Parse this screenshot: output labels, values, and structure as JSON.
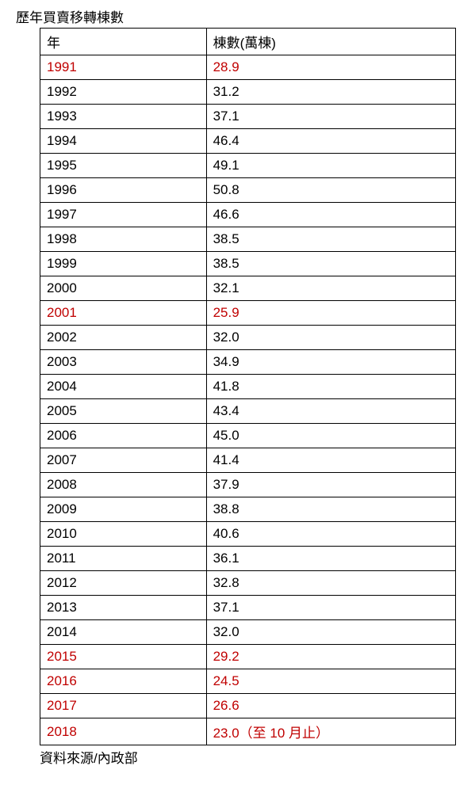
{
  "document": {
    "title": "歷年買賣移轉棟數",
    "source": "資料來源/內政部",
    "table": {
      "columns": [
        "年",
        "棟數(萬棟)"
      ],
      "column_widths": [
        "40%",
        "60%"
      ],
      "rows": [
        {
          "year": "1991",
          "value": "28.9",
          "highlight": true
        },
        {
          "year": "1992",
          "value": "31.2",
          "highlight": false
        },
        {
          "year": "1993",
          "value": "37.1",
          "highlight": false
        },
        {
          "year": "1994",
          "value": "46.4",
          "highlight": false
        },
        {
          "year": "1995",
          "value": "49.1",
          "highlight": false
        },
        {
          "year": "1996",
          "value": "50.8",
          "highlight": false
        },
        {
          "year": "1997",
          "value": "46.6",
          "highlight": false
        },
        {
          "year": "1998",
          "value": "38.5",
          "highlight": false
        },
        {
          "year": "1999",
          "value": "38.5",
          "highlight": false
        },
        {
          "year": "2000",
          "value": "32.1",
          "highlight": false
        },
        {
          "year": "2001",
          "value": "25.9",
          "highlight": true
        },
        {
          "year": "2002",
          "value": "32.0",
          "highlight": false
        },
        {
          "year": "2003",
          "value": "34.9",
          "highlight": false
        },
        {
          "year": "2004",
          "value": "41.8",
          "highlight": false
        },
        {
          "year": "2005",
          "value": "43.4",
          "highlight": false
        },
        {
          "year": "2006",
          "value": "45.0",
          "highlight": false
        },
        {
          "year": "2007",
          "value": "41.4",
          "highlight": false
        },
        {
          "year": "2008",
          "value": "37.9",
          "highlight": false
        },
        {
          "year": "2009",
          "value": "38.8",
          "highlight": false
        },
        {
          "year": "2010",
          "value": "40.6",
          "highlight": false
        },
        {
          "year": "2011",
          "value": "36.1",
          "highlight": false
        },
        {
          "year": "2012",
          "value": "32.8",
          "highlight": false
        },
        {
          "year": "2013",
          "value": "37.1",
          "highlight": false
        },
        {
          "year": "2014",
          "value": "32.0",
          "highlight": false
        },
        {
          "year": "2015",
          "value": "29.2",
          "highlight": true
        },
        {
          "year": "2016",
          "value": "24.5",
          "highlight": true
        },
        {
          "year": "2017",
          "value": "26.6",
          "highlight": true
        },
        {
          "year": "2018",
          "value": "23.0（至 10 月止）",
          "highlight": true
        }
      ],
      "border_color": "#000000",
      "highlight_color": "#c00000",
      "normal_color": "#000000",
      "font_size": 17,
      "background_color": "#ffffff"
    }
  }
}
